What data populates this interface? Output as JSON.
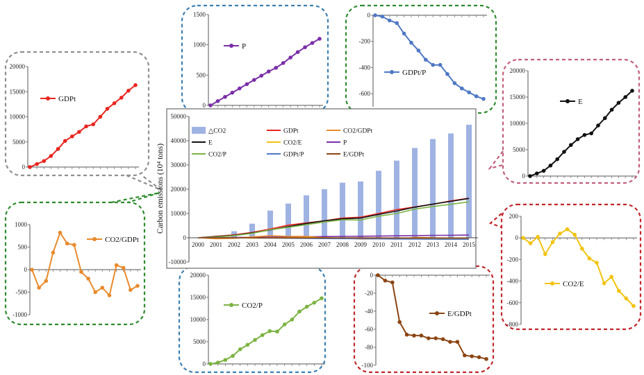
{
  "colors": {
    "co2_bar": "#9fb3e3",
    "GDPt": "#e8251f",
    "CO2/GDPt": "#e88a2c",
    "E": "#111111",
    "CO2/E": "#f2c30f",
    "P": "#7a2ea8",
    "CO2/P": "#7cb342",
    "GDPt/P": "#4f78c4",
    "E/GDPt": "#8b4513",
    "callout_grey": "#8f8f8f",
    "callout_blue": "#3d7fb0",
    "callout_green": "#2e8b2e",
    "callout_pink": "#c0607a",
    "callout_red": "#c0262c"
  },
  "chart_data": [
    {
      "id": "main",
      "type": "bar",
      "ylabel": "Carbon emissions (10⁴ tons)",
      "ylim": [
        -10000,
        50000
      ],
      "yticks": [
        "50000",
        "40000",
        "30000",
        "20000",
        "10000",
        "0",
        "-10000"
      ],
      "categories": [
        "2000",
        "2001",
        "2002",
        "2003",
        "2004",
        "2005",
        "2006",
        "2007",
        "2008",
        "2009",
        "2010",
        "2011",
        "2012",
        "2013",
        "2014",
        "2015"
      ],
      "legend_position": "top",
      "legend": [
        {
          "label": "△CO2",
          "key": "co2_bar",
          "kind": "bar"
        },
        {
          "label": "GDPt",
          "key": "GDPt",
          "kind": "line"
        },
        {
          "label": "CO2/GDPt",
          "key": "CO2/GDPt",
          "kind": "line"
        },
        {
          "label": "E",
          "key": "E",
          "kind": "line"
        },
        {
          "label": "CO2/E",
          "key": "CO2/E",
          "kind": "line"
        },
        {
          "label": "P",
          "key": "P",
          "kind": "line"
        },
        {
          "label": "CO2/P",
          "key": "CO2/P",
          "kind": "line"
        },
        {
          "label": "GDPt/P",
          "key": "GDPt/P",
          "kind": "line"
        },
        {
          "label": "E/GDPt",
          "key": "E/GDPt",
          "kind": "line"
        }
      ],
      "bars": {
        "name": "△CO2",
        "values": [
          0,
          0,
          2700,
          5800,
          11200,
          14100,
          17500,
          20000,
          22700,
          23200,
          27600,
          31800,
          37000,
          40700,
          43000,
          46600
        ]
      },
      "series": [
        {
          "name": "GDPt",
          "values": [
            0,
            600,
            1200,
            2200,
            3600,
            5200,
            6100,
            7000,
            8100,
            8500,
            10000,
            11600,
            12700,
            13800,
            15200,
            16300
          ]
        },
        {
          "name": "E",
          "values": [
            0,
            500,
            1000,
            2000,
            3200,
            4600,
            5900,
            7000,
            7800,
            8100,
            9600,
            11000,
            12600,
            13900,
            15000,
            16200
          ]
        },
        {
          "name": "CO2/P",
          "values": [
            0,
            300,
            900,
            1800,
            3300,
            4300,
            5400,
            6500,
            7400,
            7300,
            8900,
            10000,
            11800,
            12900,
            13800,
            14800
          ]
        },
        {
          "name": "P",
          "values": [
            0,
            70,
            140,
            210,
            280,
            350,
            420,
            490,
            560,
            620,
            700,
            790,
            880,
            960,
            1030,
            1100
          ]
        },
        {
          "name": "CO2/GDPt",
          "values": [
            0,
            -400,
            -250,
            380,
            820,
            580,
            550,
            -50,
            -200,
            -500,
            -400,
            -570,
            100,
            40,
            -450,
            -360
          ]
        },
        {
          "name": "CO2/E",
          "values": [
            0,
            -50,
            10,
            -150,
            -40,
            40,
            80,
            30,
            -100,
            -190,
            -230,
            -420,
            -360,
            -490,
            -560,
            -630
          ]
        },
        {
          "name": "GDPt/P",
          "values": [
            0,
            -10,
            -40,
            -60,
            -140,
            -210,
            -270,
            -340,
            -380,
            -380,
            -450,
            -520,
            -560,
            -590,
            -620,
            -640
          ]
        },
        {
          "name": "E/GDPt",
          "values": [
            0,
            -6,
            -8,
            -52,
            -66,
            -67,
            -67,
            -70,
            -70,
            -71,
            -74,
            -74,
            -89,
            -90,
            -91,
            -93
          ]
        }
      ]
    },
    {
      "id": "GDPt",
      "type": "line",
      "legend": "GDPt",
      "ylim": [
        0,
        20000
      ],
      "yticks": [
        "20000",
        "15000",
        "10000",
        "5000",
        "0"
      ],
      "values": [
        0,
        600,
        1200,
        2200,
        3600,
        5200,
        6100,
        7000,
        8100,
        8500,
        10000,
        11600,
        12700,
        13800,
        15200,
        16300
      ]
    },
    {
      "id": "P",
      "type": "line",
      "legend": "P",
      "ylim": [
        0,
        1500
      ],
      "yticks": [
        "1500",
        "1000",
        "500",
        "0"
      ],
      "values": [
        0,
        70,
        140,
        210,
        280,
        350,
        420,
        490,
        560,
        620,
        700,
        790,
        880,
        960,
        1030,
        1100
      ]
    },
    {
      "id": "GDPt/P",
      "type": "line",
      "legend": "GDPt/P",
      "ylim": [
        -700,
        0
      ],
      "yticks": [
        "0",
        "-200",
        "-400",
        "-600"
      ],
      "values": [
        0,
        -10,
        -40,
        -60,
        -140,
        -210,
        -270,
        -340,
        -380,
        -380,
        -450,
        -520,
        -560,
        -590,
        -620,
        -640
      ]
    },
    {
      "id": "E",
      "type": "line",
      "legend": "E",
      "ylim": [
        0,
        20000
      ],
      "yticks": [
        "20000",
        "15000",
        "10000",
        "5000",
        "0"
      ],
      "values": [
        0,
        500,
        1000,
        2000,
        3200,
        4600,
        5900,
        7000,
        7800,
        8100,
        9600,
        11000,
        12600,
        13900,
        15000,
        16200
      ]
    },
    {
      "id": "CO2/GDPt",
      "type": "line",
      "legend": "CO2/GDPt",
      "ylim": [
        -1000,
        1000
      ],
      "yticks": [
        "1000",
        "500",
        "0",
        "-500",
        "-1000"
      ],
      "values": [
        0,
        -400,
        -250,
        380,
        820,
        580,
        550,
        -50,
        -200,
        -500,
        -400,
        -570,
        100,
        40,
        -450,
        -360
      ]
    },
    {
      "id": "CO2/E",
      "type": "line",
      "legend": "CO2/E",
      "ylim": [
        -800,
        200
      ],
      "yticks": [
        "200",
        "0",
        "-200",
        "-400",
        "-600",
        "-800"
      ],
      "values": [
        0,
        -50,
        10,
        -150,
        -40,
        40,
        80,
        30,
        -100,
        -190,
        -230,
        -420,
        -360,
        -490,
        -560,
        -630
      ]
    },
    {
      "id": "CO2/P",
      "type": "line",
      "legend": "CO2/P",
      "ylim": [
        0,
        20000
      ],
      "yticks": [
        "20000",
        "15000",
        "10000",
        "5000",
        "0"
      ],
      "values": [
        0,
        300,
        900,
        1800,
        3300,
        4300,
        5400,
        6500,
        7400,
        7300,
        8900,
        10000,
        11800,
        12900,
        13800,
        14800
      ]
    },
    {
      "id": "E/GDPt",
      "type": "line",
      "legend": "E/GDPt",
      "ylim": [
        -100,
        0
      ],
      "yticks": [
        "0",
        "-20",
        "-40",
        "-60",
        "-80",
        "-100"
      ],
      "values": [
        0,
        -6,
        -8,
        -52,
        -66,
        -67,
        -67,
        -70,
        -70,
        -71,
        -74,
        -74,
        -89,
        -90,
        -91,
        -93
      ]
    }
  ]
}
